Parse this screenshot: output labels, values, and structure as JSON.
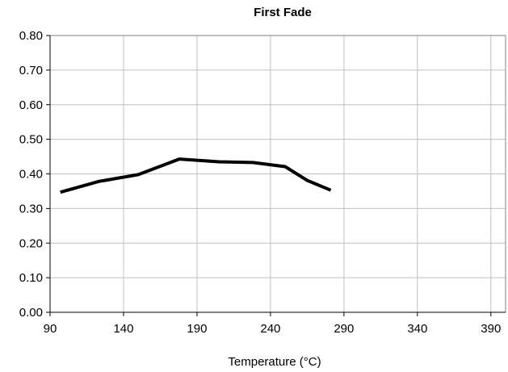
{
  "chart_data": {
    "type": "line",
    "title": "First Fade",
    "xlabel": "Temperature (°C)",
    "ylabel": "",
    "xlim": [
      90,
      400
    ],
    "ylim": [
      0.0,
      0.8
    ],
    "x_ticks": [
      "90",
      "140",
      "190",
      "240",
      "290",
      "340",
      "390"
    ],
    "y_ticks": [
      "0.00",
      "0.10",
      "0.20",
      "0.30",
      "0.40",
      "0.50",
      "0.60",
      "0.70",
      "0.80"
    ],
    "grid": true,
    "legend": "none",
    "series": [
      {
        "color": "#000000",
        "x": [
          97,
          123,
          150,
          178,
          205,
          228,
          250,
          265,
          281
        ],
        "y": [
          0.347,
          0.378,
          0.398,
          0.443,
          0.435,
          0.433,
          0.421,
          0.381,
          0.353
        ]
      }
    ]
  }
}
